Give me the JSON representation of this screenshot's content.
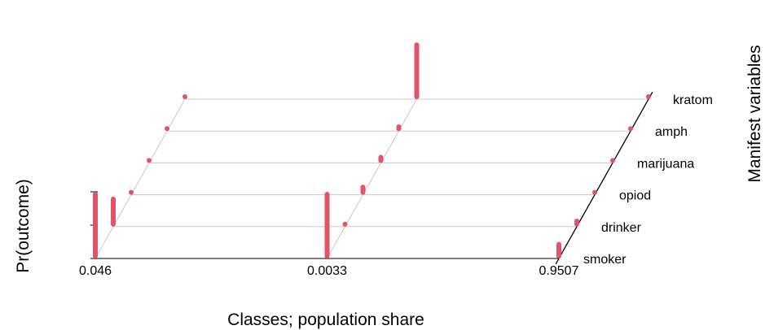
{
  "chart_data": {
    "type": "bar",
    "subtype": "3d-latent-class-profile",
    "xlabel": "Classes; population share",
    "ylabel": "Pr(outcome)",
    "zlabel": "Manifest variables",
    "classes": [
      "0.046",
      "0.0033",
      "0.9507"
    ],
    "variables": [
      "smoker",
      "drinker",
      "opiod",
      "marijuana",
      "amph",
      "kratom"
    ],
    "ylim": [
      0,
      1
    ],
    "series": [
      {
        "class": "0.046",
        "values": [
          1.0,
          0.45,
          0.03,
          0.03,
          0.03,
          0.03
        ]
      },
      {
        "class": "0.0033",
        "values": [
          1.0,
          0.03,
          0.15,
          0.12,
          0.1,
          0.85
        ]
      },
      {
        "class": "0.9507",
        "values": [
          0.25,
          0.12,
          0.03,
          0.03,
          0.03,
          0.03
        ]
      }
    ],
    "bar_color": "#DF536B",
    "grid": true
  }
}
